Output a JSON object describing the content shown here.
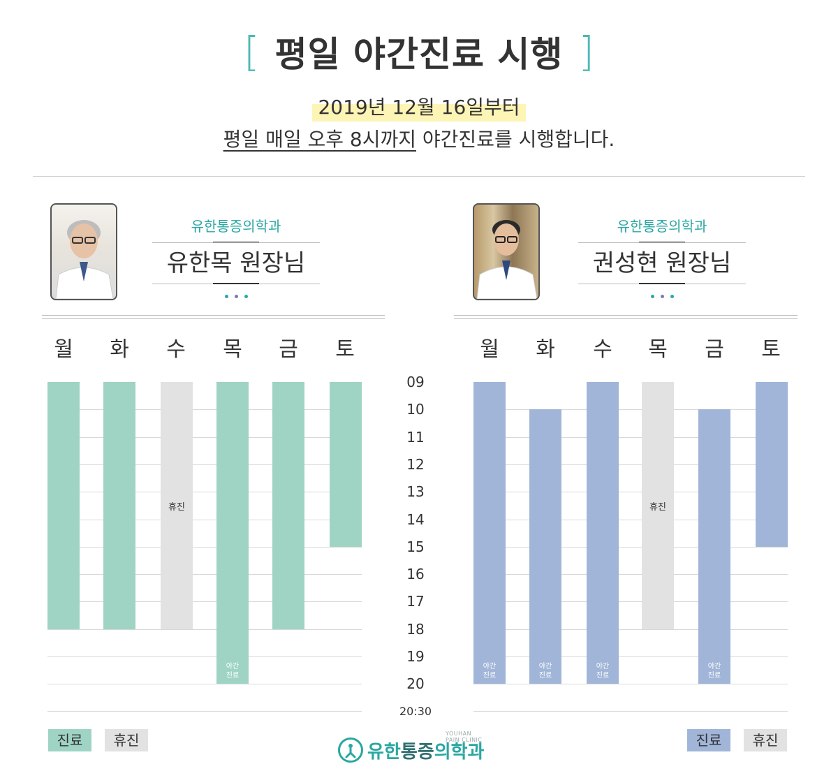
{
  "header": {
    "bracket_left": "[",
    "bracket_right": "]",
    "title": "평일 야간진료 시행",
    "date_line": "2019년 12월 16일부터",
    "notice_underlined": "평일 매일 오후 8시까지",
    "notice_rest": " 야간진료를 시행합니다."
  },
  "doctors": [
    {
      "clinic": "유한통증의학과",
      "name": "유한목 원장님",
      "color": "#9fd4c5"
    },
    {
      "clinic": "유한통증의학과",
      "name": "권성현 원장님",
      "color": "#a1b5d8"
    }
  ],
  "days": [
    "월",
    "화",
    "수",
    "목",
    "금",
    "토"
  ],
  "hours": [
    "09",
    "10",
    "11",
    "12",
    "13",
    "14",
    "15",
    "16",
    "17",
    "18",
    "19",
    "20"
  ],
  "end_time": "20:30",
  "labels": {
    "closed": "휴진",
    "night_line1": "야간",
    "night_line2": "진료"
  },
  "schedule": {
    "doctor1": [
      {
        "day": "월",
        "start": 9,
        "end": 18,
        "status": "진료"
      },
      {
        "day": "화",
        "start": 9,
        "end": 18,
        "status": "진료"
      },
      {
        "day": "수",
        "start": 9,
        "end": 18,
        "status": "휴진"
      },
      {
        "day": "목",
        "start": 9,
        "end": 20,
        "status": "진료",
        "night": true
      },
      {
        "day": "금",
        "start": 9,
        "end": 18,
        "status": "진료"
      },
      {
        "day": "토",
        "start": 9,
        "end": 15,
        "status": "진료"
      }
    ],
    "doctor2": [
      {
        "day": "월",
        "start": 9,
        "end": 20,
        "status": "진료",
        "night": true
      },
      {
        "day": "화",
        "start": 10,
        "end": 20,
        "status": "진료",
        "night": true
      },
      {
        "day": "수",
        "start": 9,
        "end": 20,
        "status": "진료",
        "night": true
      },
      {
        "day": "목",
        "start": 9,
        "end": 18,
        "status": "휴진"
      },
      {
        "day": "금",
        "start": 10,
        "end": 20,
        "status": "진료",
        "night": true
      },
      {
        "day": "토",
        "start": 9,
        "end": 15,
        "status": "진료"
      }
    ]
  },
  "legend": {
    "open": "진료",
    "closed": "휴진",
    "colors": {
      "green": "#9fd4c5",
      "blue": "#a1b5d8",
      "gray": "#e2e2e2"
    }
  },
  "footer": {
    "logo_prefix": "유한",
    "logo_mid": "통증",
    "logo_suffix": "의학과",
    "logo_sub": "YOUHAN PAIN CLINIC",
    "logo_icon": "person-circle-icon"
  }
}
